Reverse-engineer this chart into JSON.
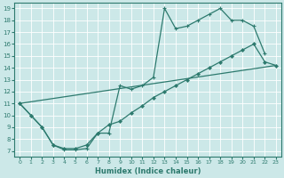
{
  "title": "",
  "xlabel": "Humidex (Indice chaleur)",
  "bg_color": "#cce8e8",
  "line_color": "#2d7a6e",
  "xlim": [
    -0.5,
    23.5
  ],
  "ylim": [
    6.5,
    19.5
  ],
  "xticks": [
    0,
    1,
    2,
    3,
    4,
    5,
    6,
    7,
    8,
    9,
    10,
    11,
    12,
    13,
    14,
    15,
    16,
    17,
    18,
    19,
    20,
    21,
    22,
    23
  ],
  "yticks": [
    7,
    8,
    9,
    10,
    11,
    12,
    13,
    14,
    15,
    16,
    17,
    18,
    19
  ],
  "curve1_x": [
    0,
    1,
    2,
    3,
    4,
    5,
    6,
    7,
    8,
    9,
    10,
    11,
    12,
    13,
    14,
    15,
    16,
    17,
    18,
    19,
    20,
    21,
    22
  ],
  "curve1_y": [
    11,
    10,
    9,
    7.5,
    7.1,
    7.1,
    7.2,
    8.5,
    8.5,
    12.5,
    12.2,
    12.5,
    13.2,
    19,
    17.3,
    17.5,
    18,
    18.5,
    19,
    18,
    18,
    17.5,
    15.2
  ],
  "curve2_x": [
    0,
    1,
    2,
    3,
    4,
    5,
    6,
    7,
    8,
    9,
    10,
    11,
    12,
    13,
    14,
    15,
    16,
    17,
    18,
    19,
    20,
    21,
    22,
    23
  ],
  "curve2_y": [
    11,
    10,
    9,
    7.5,
    7.2,
    7.2,
    7.5,
    8.5,
    9.2,
    9.5,
    10.2,
    10.8,
    11.5,
    12,
    12.5,
    13,
    13.5,
    14,
    14.5,
    15,
    15.5,
    16,
    14.5,
    14.2
  ],
  "curve3_x": [
    0,
    23
  ],
  "curve3_y": [
    11,
    14.2
  ]
}
